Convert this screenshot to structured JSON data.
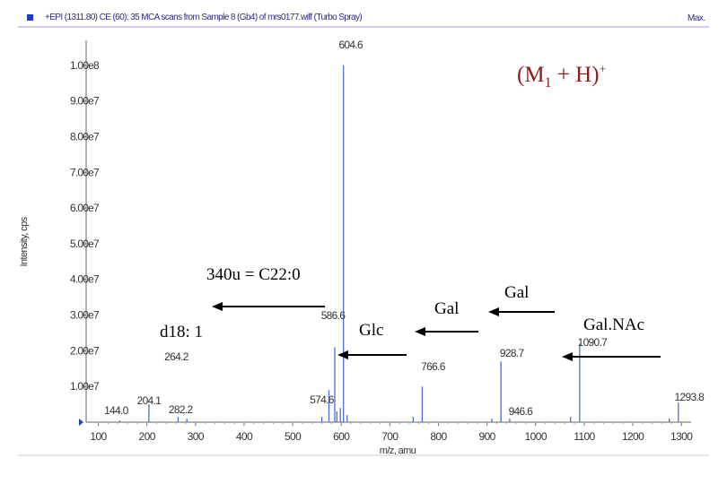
{
  "header": {
    "text": "+EPI (1311.80) CE (60): 35 MCA scans from Sample 8 (Gb4) of mrs0177.wiff (Turbo Spray)",
    "max_label": "Max."
  },
  "ion_title": {
    "main": "(M",
    "sub": "1",
    "mid": " + H)",
    "sup": "+"
  },
  "annotations": {
    "ceramide": "340u = C22:0",
    "sphingoid": "d18: 1",
    "glc": "Glc",
    "gal1": "Gal",
    "gal2": "Gal",
    "galnac": "Gal.NAc"
  },
  "chart_data": {
    "type": "bar",
    "title": "",
    "xlabel": "m/z, amu",
    "ylabel": "Intensity, cps",
    "xlim": [
      75,
      1320
    ],
    "ylim": [
      0,
      107000000.0
    ],
    "x_ticks": [
      100,
      200,
      300,
      400,
      500,
      600,
      700,
      800,
      900,
      1000,
      1100,
      1200,
      1300
    ],
    "y_ticks": [
      {
        "value": 10000000.0,
        "label": "1.00e7"
      },
      {
        "value": 20000000.0,
        "label": "2.00e7"
      },
      {
        "value": 30000000.0,
        "label": "3.00e7"
      },
      {
        "value": 40000000.0,
        "label": "4.00e7"
      },
      {
        "value": 50000000.0,
        "label": "5.00e7"
      },
      {
        "value": 60000000.0,
        "label": "6.00e7"
      },
      {
        "value": 70000000.0,
        "label": "7.00e7"
      },
      {
        "value": 80000000.0,
        "label": "8.00e7"
      },
      {
        "value": 90000000.0,
        "label": "9.00e7"
      },
      {
        "value": 100000000.0,
        "label": "1.00e8"
      }
    ],
    "peaks": [
      {
        "mz": 144.0,
        "intensity": 500000.0,
        "label": "144.0"
      },
      {
        "mz": 204.1,
        "intensity": 5000000.0,
        "label": "204.1"
      },
      {
        "mz": 264.2,
        "intensity": 1500000.0,
        "label": "264.2"
      },
      {
        "mz": 282.2,
        "intensity": 1000000.0,
        "label": "282.2"
      },
      {
        "mz": 574.6,
        "intensity": 9000000.0,
        "label": "574.6"
      },
      {
        "mz": 586.6,
        "intensity": 21000000.0,
        "label": "586.6"
      },
      {
        "mz": 604.6,
        "intensity": 100000000.0,
        "label": "604.6"
      },
      {
        "mz": 766.6,
        "intensity": 10000000.0,
        "label": "766.6"
      },
      {
        "mz": 928.7,
        "intensity": 17000000.0,
        "label": "928.7"
      },
      {
        "mz": 946.6,
        "intensity": 1000000.0,
        "label": "946.6"
      },
      {
        "mz": 1090.7,
        "intensity": 22000000.0,
        "label": "1090.7"
      },
      {
        "mz": 1293.8,
        "intensity": 5500000.0,
        "label": "1293.8"
      }
    ],
    "minor_peaks": [
      {
        "mz": 560,
        "intensity": 1500000.0
      },
      {
        "mz": 591,
        "intensity": 3000000.0
      },
      {
        "mz": 598,
        "intensity": 4000000.0
      },
      {
        "mz": 612,
        "intensity": 2000000.0
      },
      {
        "mz": 748,
        "intensity": 1500000.0
      },
      {
        "mz": 910,
        "intensity": 1000000.0
      },
      {
        "mz": 1072,
        "intensity": 1500000.0
      },
      {
        "mz": 1275,
        "intensity": 1000000.0
      }
    ],
    "colors": {
      "peaks": "#4a6fd8",
      "axis": "#666666",
      "text": "#333333",
      "arrows": "#000000",
      "ion_title": "#8b1a1a"
    }
  }
}
